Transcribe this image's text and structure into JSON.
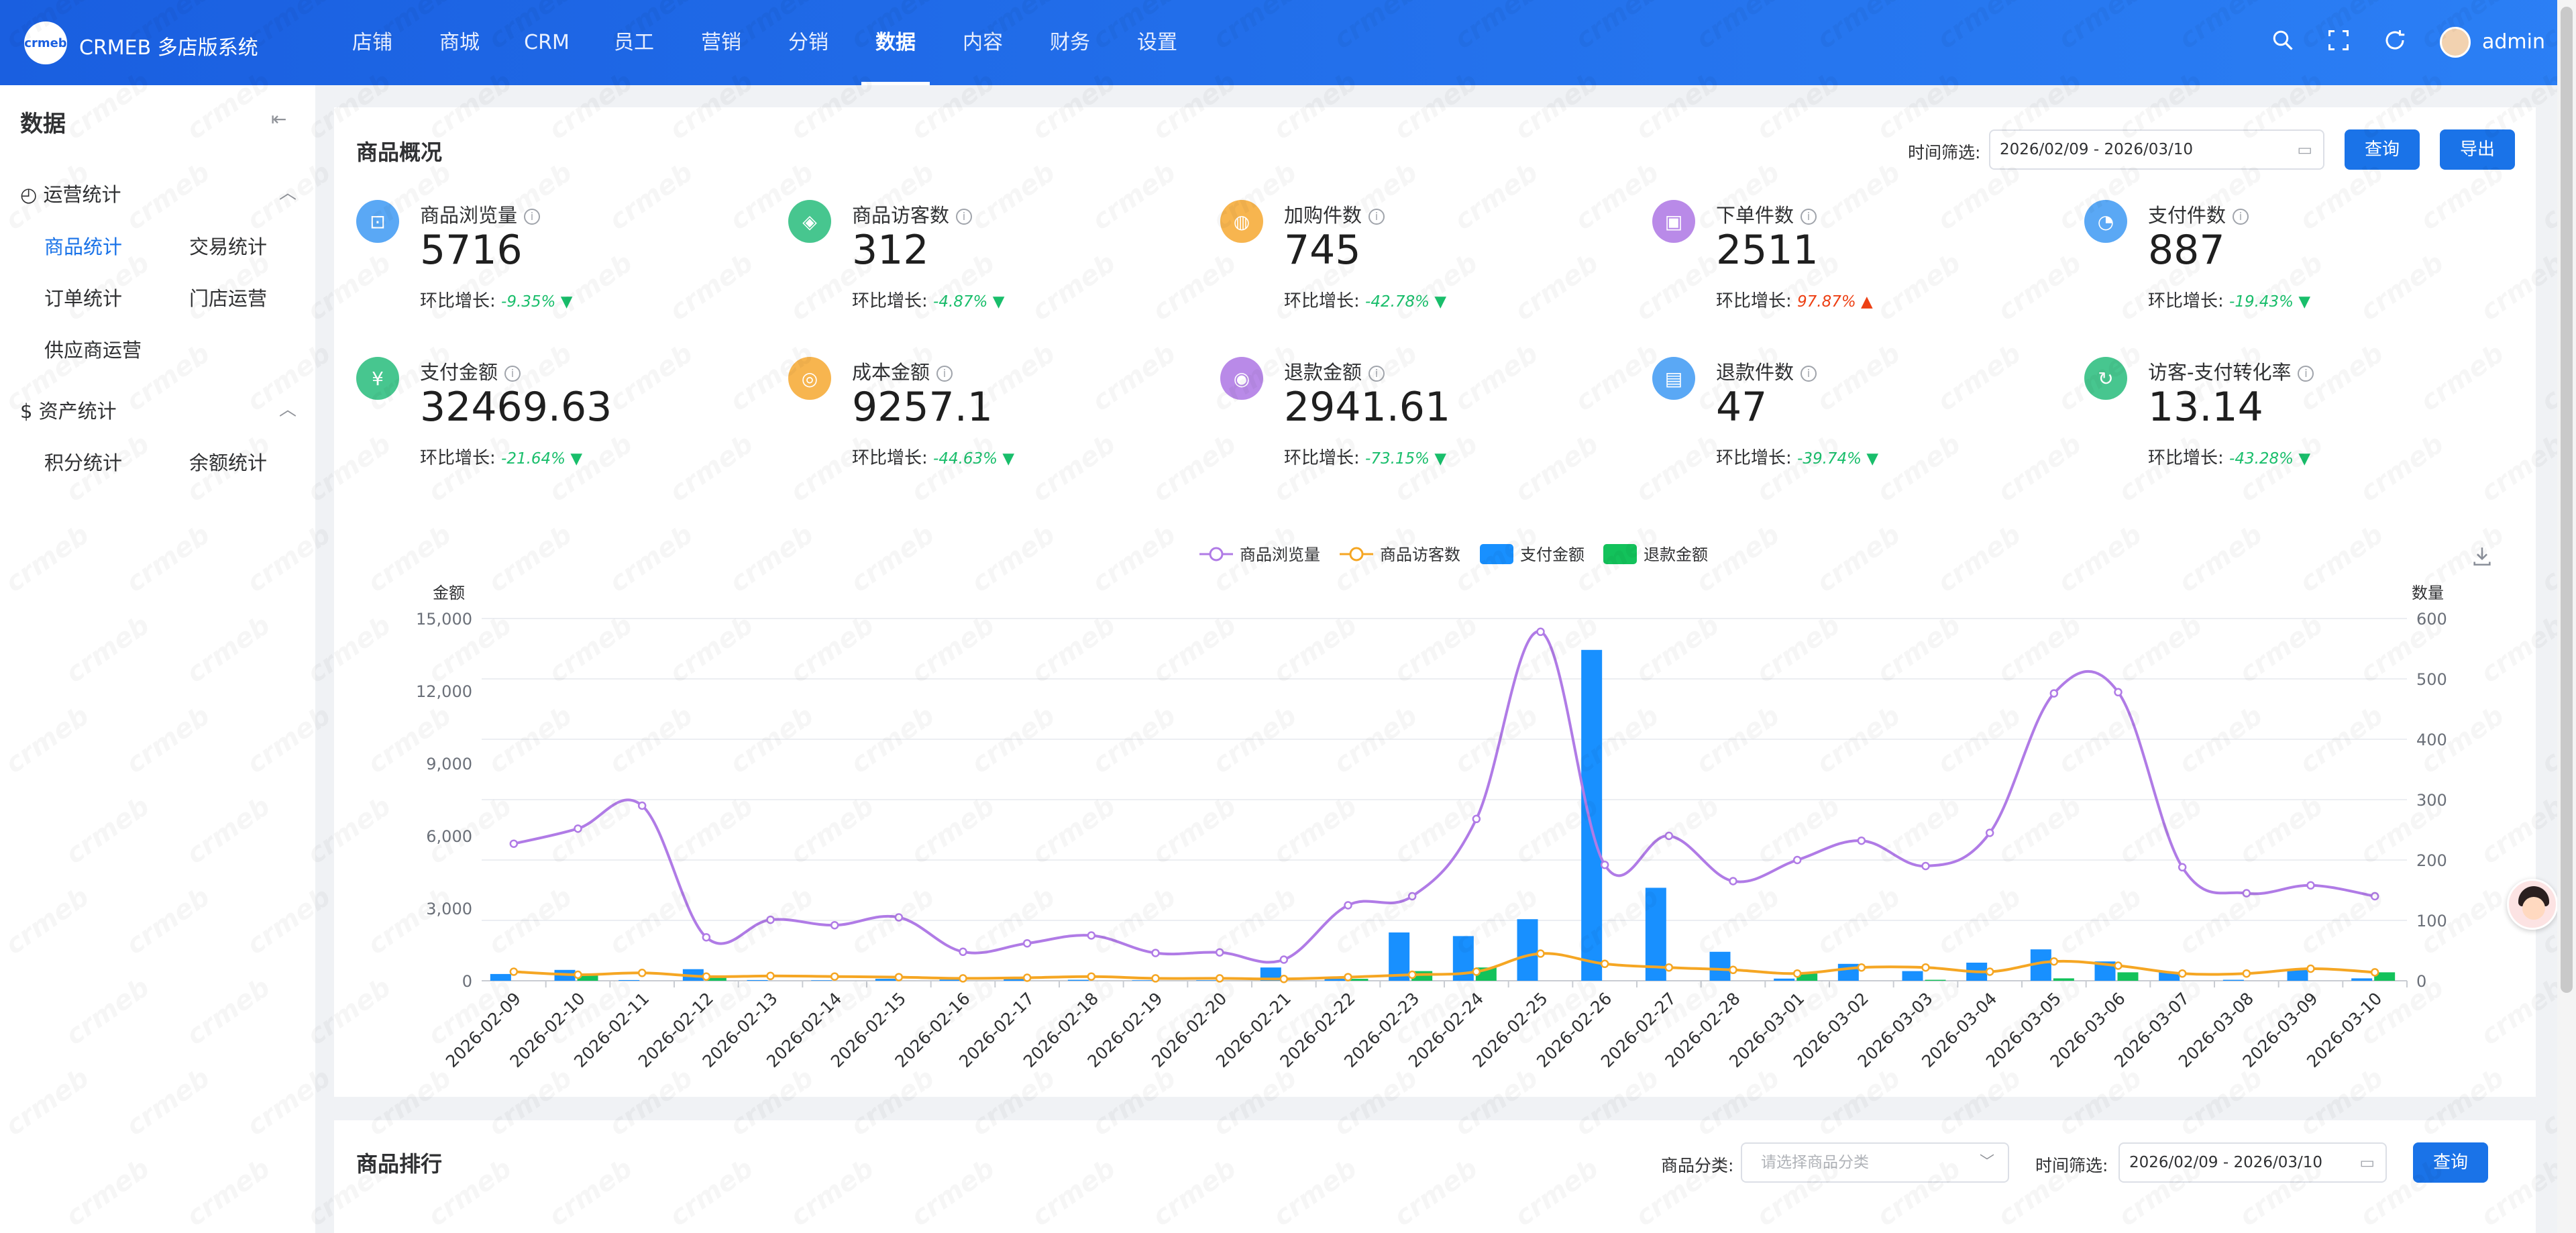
{
  "header": {
    "logo_text": "crmeb",
    "brand": "CRMEB 多店版系统",
    "nav": [
      "店铺",
      "商城",
      "CRM",
      "员工",
      "营销",
      "分销",
      "数据",
      "内容",
      "财务",
      "设置"
    ],
    "active_nav": "数据",
    "icons": [
      "search-icon",
      "fullscreen-icon",
      "refresh-icon"
    ],
    "user": "admin"
  },
  "sidebar": {
    "title": "数据",
    "groups": [
      {
        "icon": "clock-icon",
        "label": "运营统计",
        "items": [
          "商品统计",
          "交易统计",
          "订单统计",
          "门店运营",
          "供应商运营"
        ],
        "active": "商品统计"
      },
      {
        "icon": "dollar-icon",
        "label": "资产统计",
        "items": [
          "积分统计",
          "余额统计"
        ]
      }
    ]
  },
  "overview": {
    "title": "商品概况",
    "filter_label": "时间筛选:",
    "date_range": "2026/02/09 - 2026/03/10",
    "query_label": "查询",
    "export_label": "导出",
    "trend_prefix": "环比增长:",
    "colors": {
      "blue": "#5aa8f5",
      "green": "#47c68f",
      "orange": "#f7b54f",
      "purple": "#b98ae8",
      "down": "#19be6b",
      "up": "#ed4014"
    },
    "stats": [
      {
        "label": "商品浏览量",
        "value": "5716",
        "rate": "-9.35%",
        "dir": "down",
        "icon": "bag-icon",
        "color": "#5aa8f5"
      },
      {
        "label": "商品访客数",
        "value": "312",
        "rate": "-4.87%",
        "dir": "down",
        "icon": "visitor-icon",
        "color": "#47c68f"
      },
      {
        "label": "加购件数",
        "value": "745",
        "rate": "-42.78%",
        "dir": "down",
        "icon": "cart-icon",
        "color": "#f7b54f"
      },
      {
        "label": "下单件数",
        "value": "2511",
        "rate": "97.87%",
        "dir": "up",
        "icon": "order-icon",
        "color": "#b98ae8"
      },
      {
        "label": "支付件数",
        "value": "887",
        "rate": "-19.43%",
        "dir": "down",
        "icon": "pay-count-icon",
        "color": "#5aa8f5"
      },
      {
        "label": "支付金额",
        "value": "32469.63",
        "rate": "-21.64%",
        "dir": "down",
        "icon": "money-icon",
        "color": "#47c68f"
      },
      {
        "label": "成本金额",
        "value": "9257.1",
        "rate": "-44.63%",
        "dir": "down",
        "icon": "cost-icon",
        "color": "#f7b54f"
      },
      {
        "label": "退款金额",
        "value": "2941.61",
        "rate": "-73.15%",
        "dir": "down",
        "icon": "refund-money-icon",
        "color": "#b98ae8"
      },
      {
        "label": "退款件数",
        "value": "47",
        "rate": "-39.74%",
        "dir": "down",
        "icon": "refund-count-icon",
        "color": "#5aa8f5"
      },
      {
        "label": "访客-支付转化率",
        "value": "13.14",
        "rate": "-43.28%",
        "dir": "down",
        "icon": "conversion-icon",
        "color": "#47c68f"
      }
    ]
  },
  "chart_data": {
    "type": "bar",
    "title": "",
    "ylabel": "金额",
    "ylabel_right": "数量",
    "ylim": [
      0,
      15000
    ],
    "ylim_right": [
      0,
      600
    ],
    "yticks": [
      "0",
      "3,000",
      "6,000",
      "9,000",
      "12,000",
      "15,000"
    ],
    "yticks_right": [
      "0",
      "100",
      "200",
      "300",
      "400",
      "500",
      "600"
    ],
    "legend_position": "top-center",
    "grid": true,
    "categories": [
      "2026-02-09",
      "2026-02-10",
      "2026-02-11",
      "2026-02-12",
      "2026-02-13",
      "2026-02-14",
      "2026-02-15",
      "2026-02-16",
      "2026-02-17",
      "2026-02-18",
      "2026-02-19",
      "2026-02-20",
      "2026-02-21",
      "2026-02-22",
      "2026-02-23",
      "2026-02-24",
      "2026-02-25",
      "2026-02-26",
      "2026-02-27",
      "2026-02-28",
      "2026-03-01",
      "2026-03-02",
      "2026-03-03",
      "2026-03-04",
      "2026-03-05",
      "2026-03-06",
      "2026-03-07",
      "2026-03-08",
      "2026-03-09",
      "2026-03-10"
    ],
    "series": [
      {
        "name": "商品浏览量",
        "type": "line",
        "axis": "right",
        "color": "#b07be6",
        "values": [
          227,
          252,
          290,
          72,
          101,
          92,
          105,
          48,
          62,
          75,
          46,
          47,
          35,
          125,
          140,
          268,
          578,
          192,
          240,
          165,
          200,
          232,
          190,
          245,
          476,
          478,
          188,
          145,
          158,
          140
        ]
      },
      {
        "name": "商品访客数",
        "type": "line",
        "axis": "right",
        "color": "#f5a623",
        "values": [
          15,
          10,
          13,
          7,
          8,
          7,
          6,
          4,
          5,
          7,
          4,
          4,
          3,
          6,
          10,
          15,
          45,
          28,
          22,
          18,
          12,
          22,
          22,
          15,
          32,
          25,
          12,
          12,
          20,
          14
        ]
      },
      {
        "name": "支付金额",
        "type": "bar",
        "axis": "left",
        "color": "#1890ff",
        "values": [
          280,
          450,
          30,
          480,
          30,
          20,
          80,
          50,
          120,
          40,
          20,
          20,
          550,
          80,
          2000,
          1850,
          2550,
          13700,
          3850,
          1200,
          90,
          700,
          400,
          750,
          1300,
          800,
          350,
          40,
          500,
          100
        ]
      },
      {
        "name": "退款金额",
        "type": "bar",
        "axis": "left",
        "color": "#13c25b",
        "values": [
          0,
          220,
          0,
          150,
          0,
          0,
          0,
          0,
          0,
          0,
          0,
          0,
          0,
          80,
          400,
          550,
          0,
          0,
          0,
          0,
          300,
          0,
          40,
          0,
          100,
          350,
          0,
          0,
          0,
          350
        ]
      }
    ]
  },
  "ranking": {
    "title": "商品排行",
    "category_label": "商品分类:",
    "category_placeholder": "请选择商品分类",
    "filter_label": "时间筛选:",
    "date_range": "2026/02/09 - 2026/03/10",
    "query_label": "查询"
  }
}
